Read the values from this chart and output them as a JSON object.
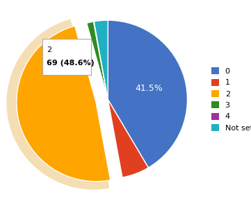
{
  "labels": [
    "0",
    "1",
    "2",
    "3",
    "4",
    "Not set"
  ],
  "values": [
    41.5,
    5.6,
    48.6,
    1.4,
    0.1,
    2.8
  ],
  "colors": [
    "#4472C4",
    "#E04020",
    "#FFA500",
    "#2E8B20",
    "#9B30A0",
    "#20B0C0"
  ],
  "explode_index": 2,
  "explode_amount": 0.08,
  "annotation_label": "2",
  "annotation_value": "69 (48.6%)",
  "label_41": "41.5%",
  "bg_color": "#FFFFFF",
  "border_color": "#AAAAAA",
  "pie_shadow_color": "#F5DEB3"
}
